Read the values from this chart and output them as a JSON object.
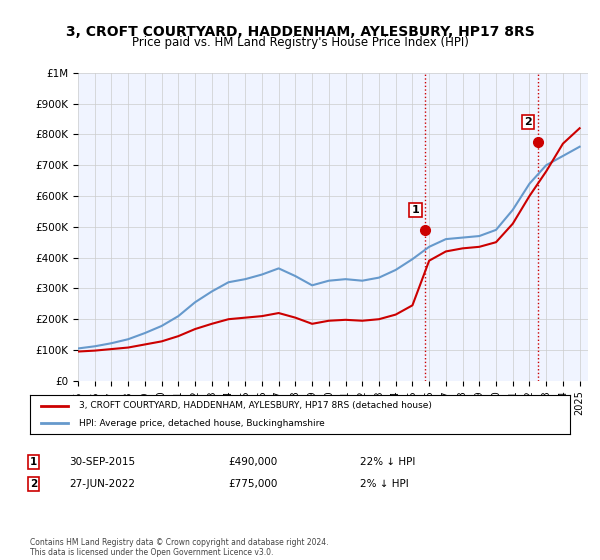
{
  "title": "3, CROFT COURTYARD, HADDENHAM, AYLESBURY, HP17 8RS",
  "subtitle": "Price paid vs. HM Land Registry's House Price Index (HPI)",
  "legend_line1": "3, CROFT COURTYARD, HADDENHAM, AYLESBURY, HP17 8RS (detached house)",
  "legend_line2": "HPI: Average price, detached house, Buckinghamshire",
  "annotation1_label": "1",
  "annotation1_date": "30-SEP-2015",
  "annotation1_price": "£490,000",
  "annotation1_hpi": "22% ↓ HPI",
  "annotation2_label": "2",
  "annotation2_date": "27-JUN-2022",
  "annotation2_price": "£775,000",
  "annotation2_hpi": "2% ↓ HPI",
  "footer": "Contains HM Land Registry data © Crown copyright and database right 2024.\nThis data is licensed under the Open Government Licence v3.0.",
  "hpi_color": "#6699cc",
  "price_color": "#cc0000",
  "marker_color": "#cc0000",
  "vline_color": "#cc0000",
  "background_color": "#ffffff",
  "plot_bg_color": "#f0f4ff",
  "grid_color": "#cccccc",
  "ylim": [
    0,
    1000000
  ],
  "xlim_start": 1995.0,
  "xlim_end": 2025.5,
  "sale1_x": 2015.75,
  "sale1_y": 490000,
  "sale2_x": 2022.5,
  "sale2_y": 775000,
  "hpi_years": [
    1995,
    1996,
    1997,
    1998,
    1999,
    2000,
    2001,
    2002,
    2003,
    2004,
    2005,
    2006,
    2007,
    2008,
    2009,
    2010,
    2011,
    2012,
    2013,
    2014,
    2015,
    2016,
    2017,
    2018,
    2019,
    2020,
    2021,
    2022,
    2023,
    2024,
    2025
  ],
  "hpi_values": [
    105000,
    112000,
    122000,
    135000,
    155000,
    178000,
    210000,
    255000,
    290000,
    320000,
    330000,
    345000,
    365000,
    340000,
    310000,
    325000,
    330000,
    325000,
    335000,
    360000,
    395000,
    435000,
    460000,
    465000,
    470000,
    490000,
    555000,
    640000,
    700000,
    730000,
    760000
  ],
  "price_years": [
    1995,
    1996,
    1997,
    1998,
    1999,
    2000,
    2001,
    2002,
    2003,
    2004,
    2005,
    2006,
    2007,
    2008,
    2009,
    2010,
    2011,
    2012,
    2013,
    2014,
    2015,
    2016,
    2017,
    2018,
    2019,
    2020,
    2021,
    2022,
    2023,
    2024,
    2025
  ],
  "price_values": [
    95000,
    98000,
    103000,
    108000,
    118000,
    128000,
    145000,
    168000,
    185000,
    200000,
    205000,
    210000,
    220000,
    205000,
    185000,
    195000,
    198000,
    195000,
    200000,
    215000,
    245000,
    390000,
    420000,
    430000,
    435000,
    450000,
    510000,
    600000,
    680000,
    770000,
    820000
  ]
}
